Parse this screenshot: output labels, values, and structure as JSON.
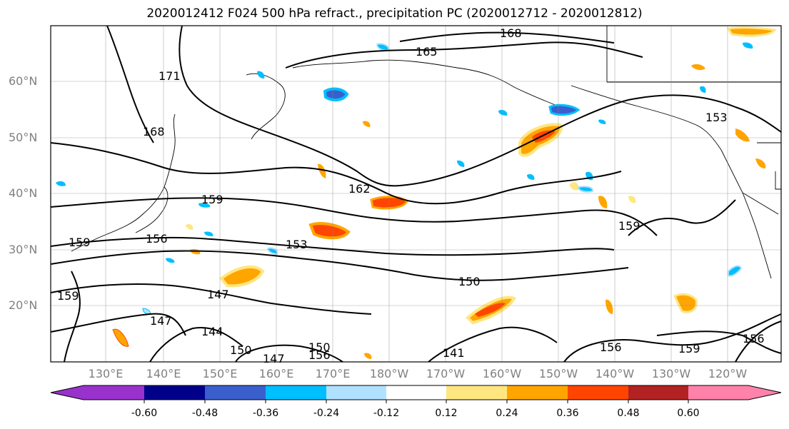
{
  "title": "2020012412 F024 500 hPa refract., precipitation PC (2020012712 - 2020012812)",
  "map": {
    "lat_labels": [
      "60°N",
      "50°N",
      "40°N",
      "30°N",
      "20°N"
    ],
    "lon_labels": [
      "130°E",
      "140°E",
      "150°E",
      "160°E",
      "170°E",
      "180°W",
      "170°W",
      "160°W",
      "150°W",
      "140°W",
      "130°W",
      "120°W"
    ],
    "contour_labels": [
      "168",
      "165",
      "171",
      "168",
      "162",
      "159",
      "156",
      "153",
      "150",
      "147",
      "147",
      "144",
      "150",
      "147",
      "150",
      "156",
      "141",
      "159",
      "159",
      "156",
      "159",
      "156",
      "153",
      "159"
    ]
  },
  "colorbar": {
    "tick_labels": [
      "-0.60",
      "-0.48",
      "-0.36",
      "-0.24",
      "-0.12",
      "0.12",
      "0.24",
      "0.36",
      "0.48",
      "0.60"
    ],
    "colors": [
      "#9932cc",
      "#00008b",
      "#3a5fcd",
      "#00bfff",
      "#b0e2ff",
      "#ffffff",
      "#ffe680",
      "#ffa500",
      "#ff4500",
      "#b22222",
      "#ff82ab"
    ]
  }
}
